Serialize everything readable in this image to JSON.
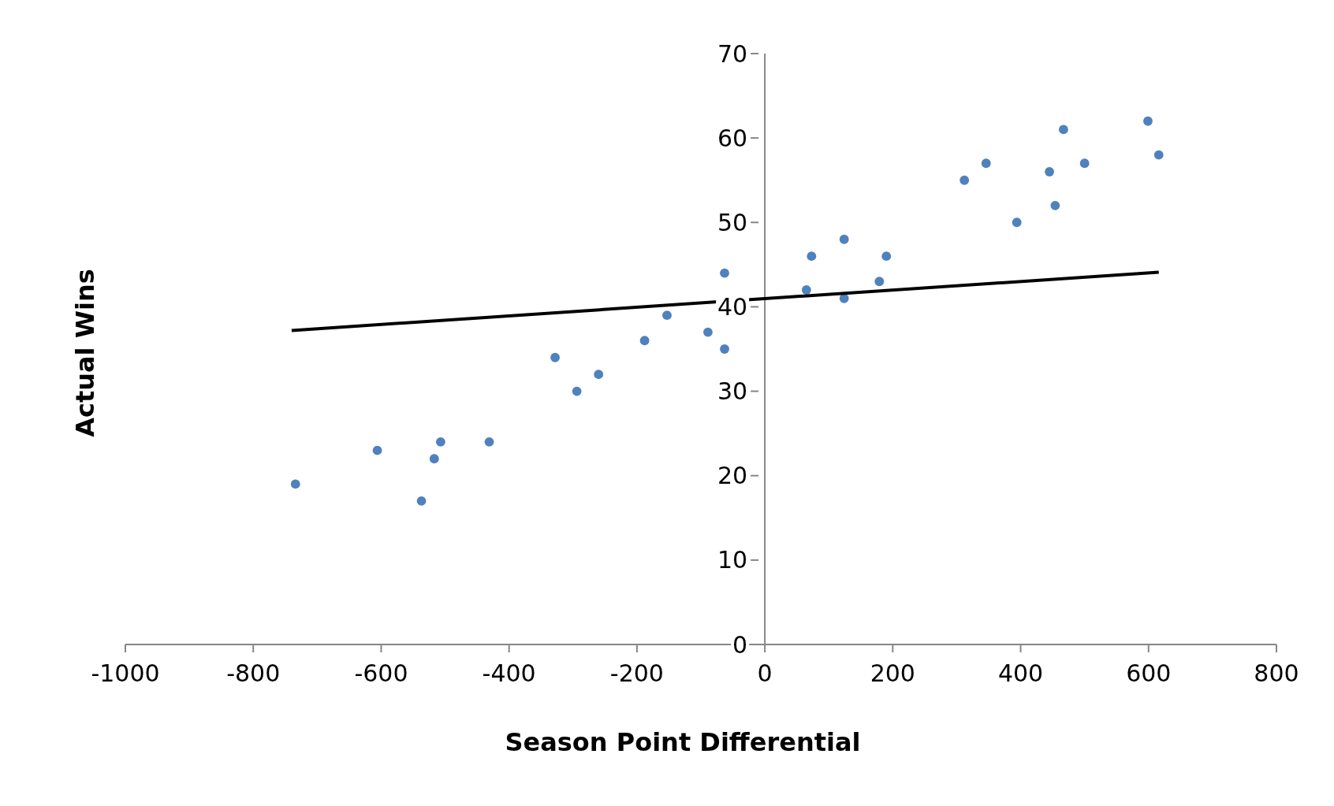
{
  "chart_data": {
    "type": "scatter",
    "xlabel": "Season Point Differential",
    "ylabel": "Actual Wins",
    "xlim": [
      -1000,
      800
    ],
    "xticks": [
      -1000,
      -800,
      -600,
      -400,
      -200,
      0,
      200,
      400,
      600,
      800
    ],
    "ylim": [
      0,
      70
    ],
    "yticks": [
      0,
      10,
      20,
      30,
      40,
      50,
      60,
      70
    ],
    "grid": false,
    "legend": false,
    "marker": "circle",
    "series": [
      {
        "color": "#4f81bd",
        "x": [
          -734,
          -606,
          -537,
          -517,
          -507,
          -431,
          -328,
          -294,
          -260,
          -188,
          -153,
          -89,
          -63,
          -63,
          65,
          73,
          124,
          124,
          179,
          190,
          312,
          346,
          394,
          445,
          454,
          467,
          500,
          599,
          616
        ],
        "values": [
          19,
          23,
          17,
          22,
          24,
          24,
          34,
          30,
          32,
          36,
          39,
          37,
          44,
          35,
          42,
          46,
          48,
          41,
          43,
          46,
          55,
          57,
          50,
          56,
          52,
          61,
          57,
          62,
          58
        ]
      },
      {
        "type": "line",
        "marker": "none",
        "color": "#000000",
        "x": [
          -740,
          616
        ],
        "values": [
          37.2,
          44.1
        ]
      }
    ]
  }
}
